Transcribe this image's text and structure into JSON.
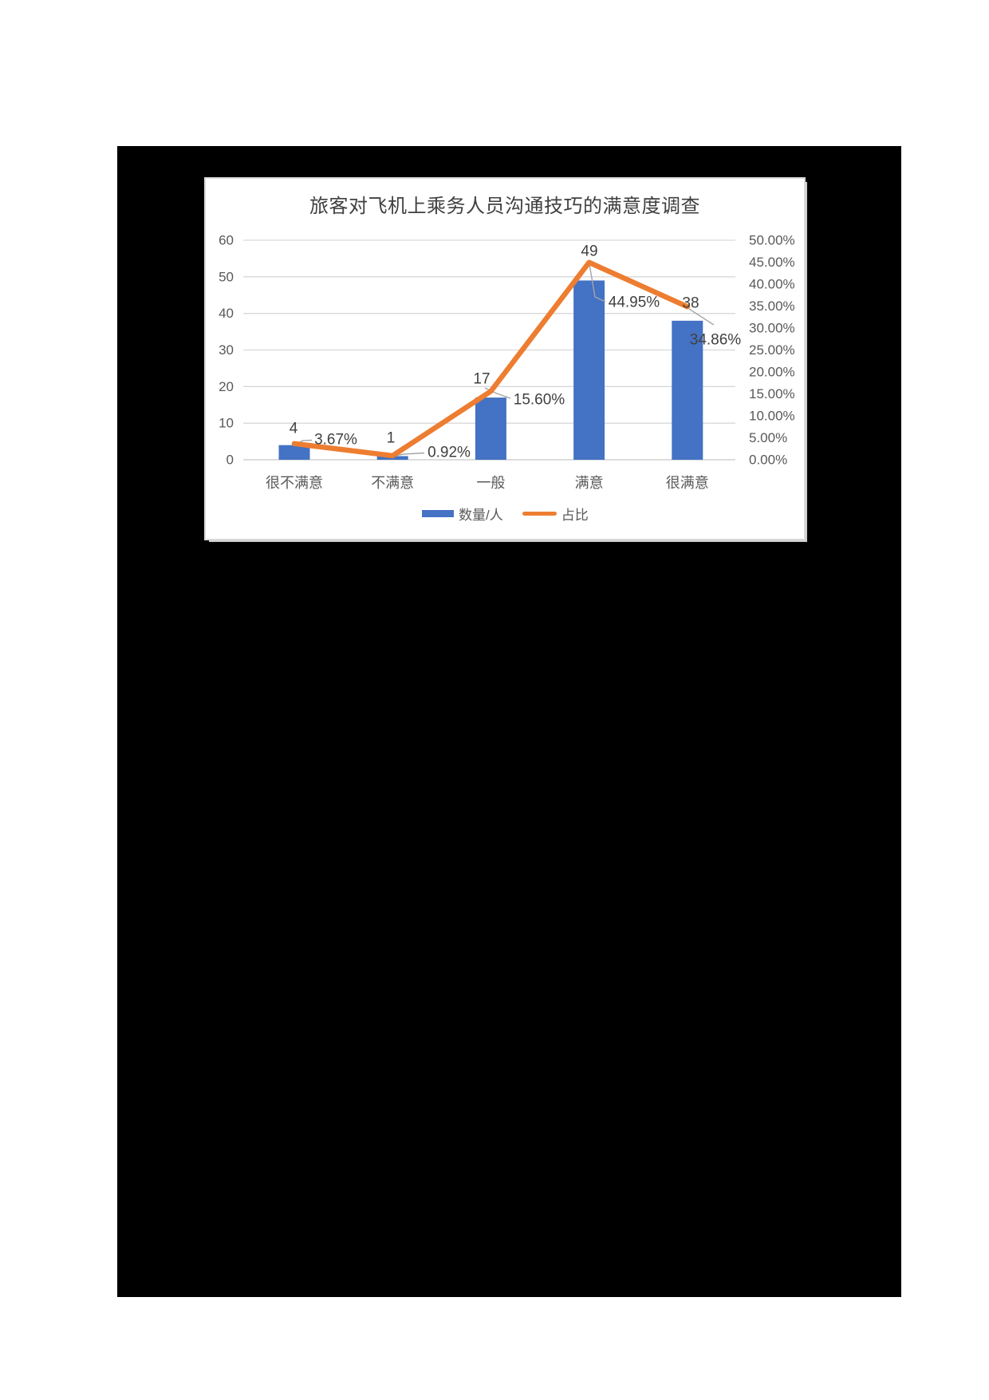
{
  "chart_data": {
    "type": "bar",
    "combo": "bar+line",
    "title": "旅客对飞机上乘务人员沟通技巧的满意度调查",
    "categories": [
      "很不满意",
      "不满意",
      "一般",
      "满意",
      "很满意"
    ],
    "series": [
      {
        "name": "数量/人",
        "type": "bar",
        "axis": "left",
        "color": "#4472C4",
        "values": [
          4,
          1,
          17,
          49,
          38
        ],
        "data_labels": [
          "4",
          "1",
          "17",
          "49",
          "38"
        ]
      },
      {
        "name": "占比",
        "type": "line",
        "axis": "right",
        "color": "#ED7D31",
        "values": [
          3.67,
          0.92,
          15.6,
          44.95,
          34.86
        ],
        "data_labels": [
          "3.67%",
          "0.92%",
          "15.60%",
          "44.95%",
          "34.86%"
        ]
      }
    ],
    "left_axis": {
      "min": 0,
      "max": 60,
      "ticks": [
        "60",
        "50",
        "40",
        "30",
        "20",
        "10",
        "0"
      ]
    },
    "right_axis": {
      "min": 0,
      "max": 50,
      "ticks": [
        "50.00%",
        "45.00%",
        "40.00%",
        "35.00%",
        "30.00%",
        "25.00%",
        "20.00%",
        "15.00%",
        "10.00%",
        "5.00%",
        "0.00%"
      ]
    },
    "legend": {
      "position": "bottom",
      "items": [
        {
          "label": "数量/人"
        },
        {
          "label": "占比"
        }
      ]
    },
    "grid": true,
    "colors": {
      "bar": "#4472C4",
      "line": "#ED7D31",
      "gridline": "#D9D9D9",
      "baseline": "#C6C6C6",
      "axis_text": "#595959",
      "data_label": "#404040",
      "leader": "#A6A6A6",
      "canvas_background": "#000000",
      "card_background": "#FFFFFF"
    }
  }
}
